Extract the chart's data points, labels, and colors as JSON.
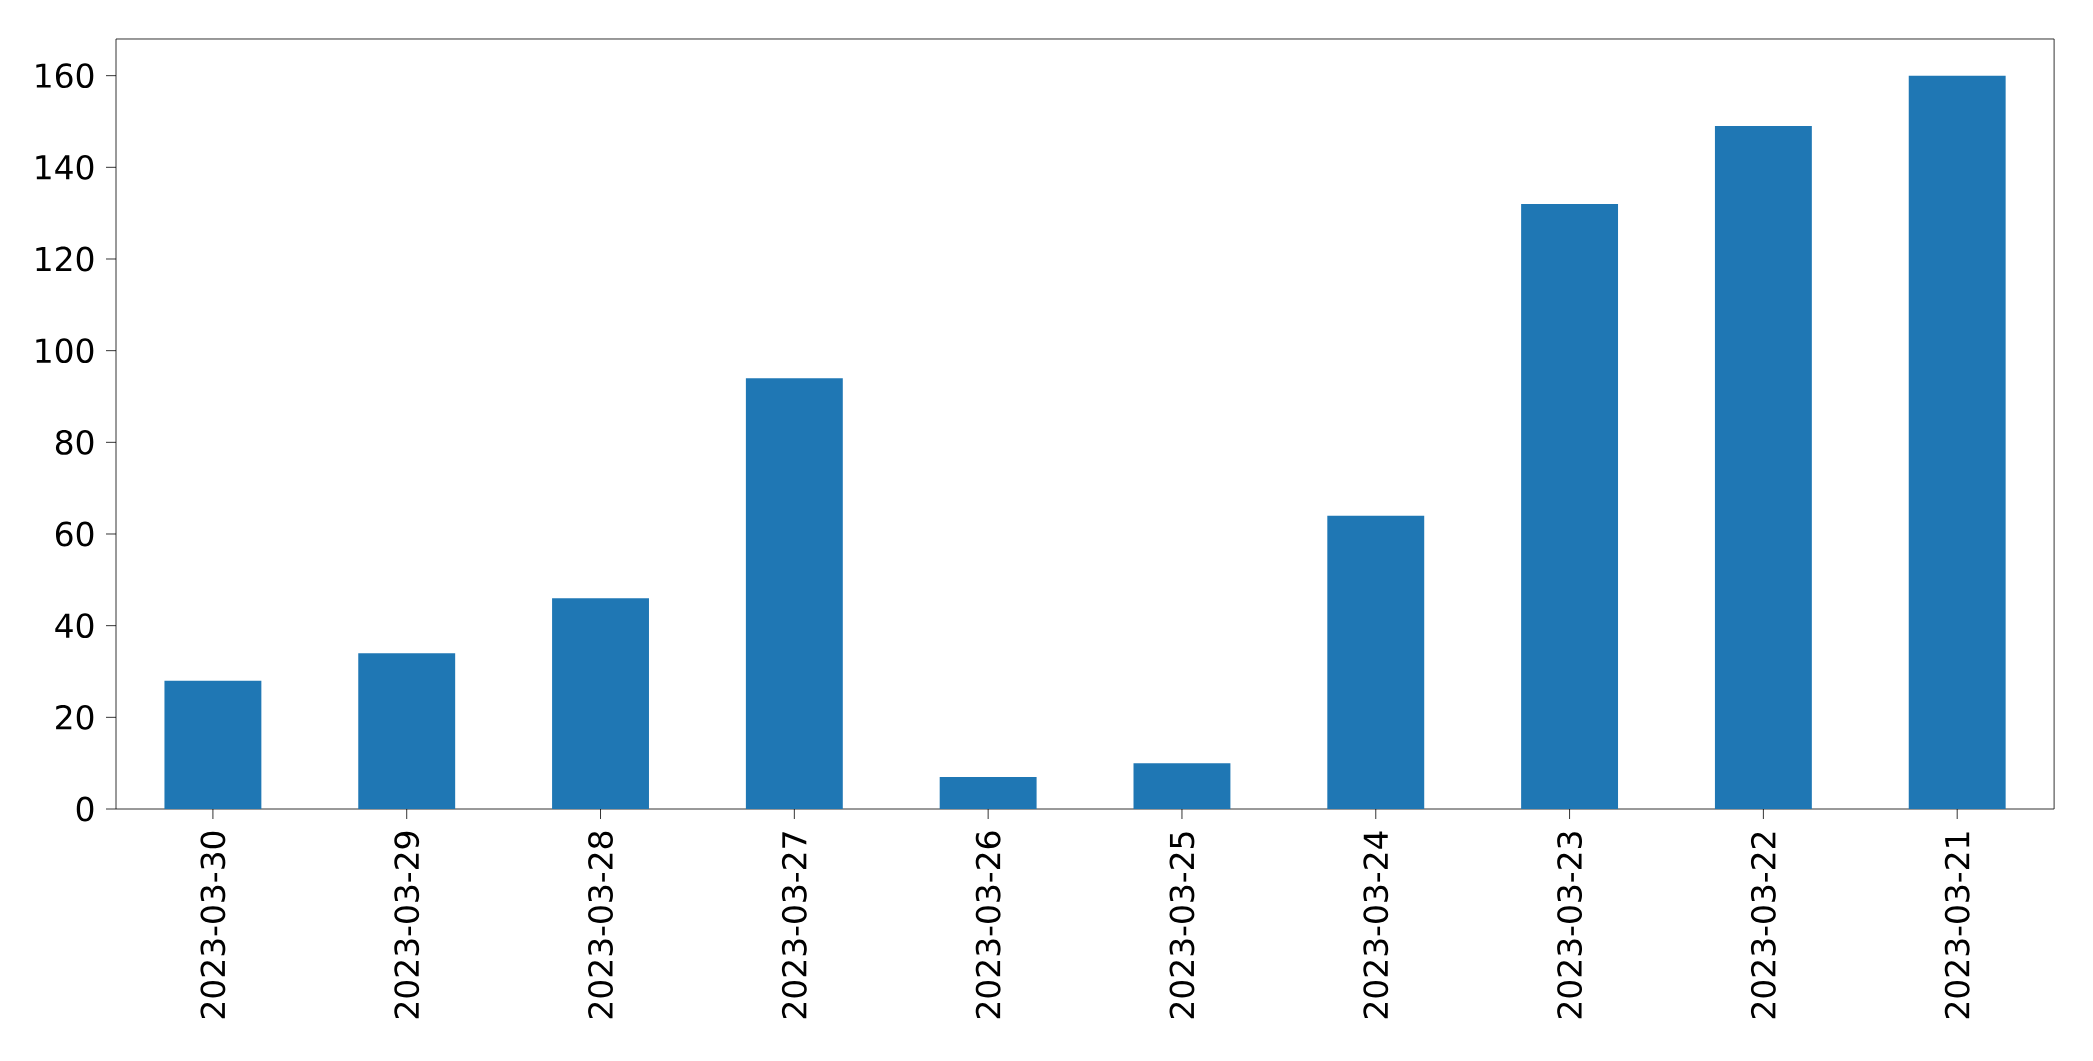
{
  "chart_data": {
    "type": "bar",
    "categories": [
      "2023-03-30",
      "2023-03-29",
      "2023-03-28",
      "2023-03-27",
      "2023-03-26",
      "2023-03-25",
      "2023-03-24",
      "2023-03-23",
      "2023-03-22",
      "2023-03-21"
    ],
    "values": [
      28,
      34,
      46,
      94,
      7,
      10,
      64,
      132,
      149,
      160
    ],
    "color": "#1f77b4",
    "ylim": [
      0,
      168
    ],
    "yticks": [
      0,
      20,
      40,
      60,
      80,
      100,
      120,
      140,
      160
    ]
  }
}
